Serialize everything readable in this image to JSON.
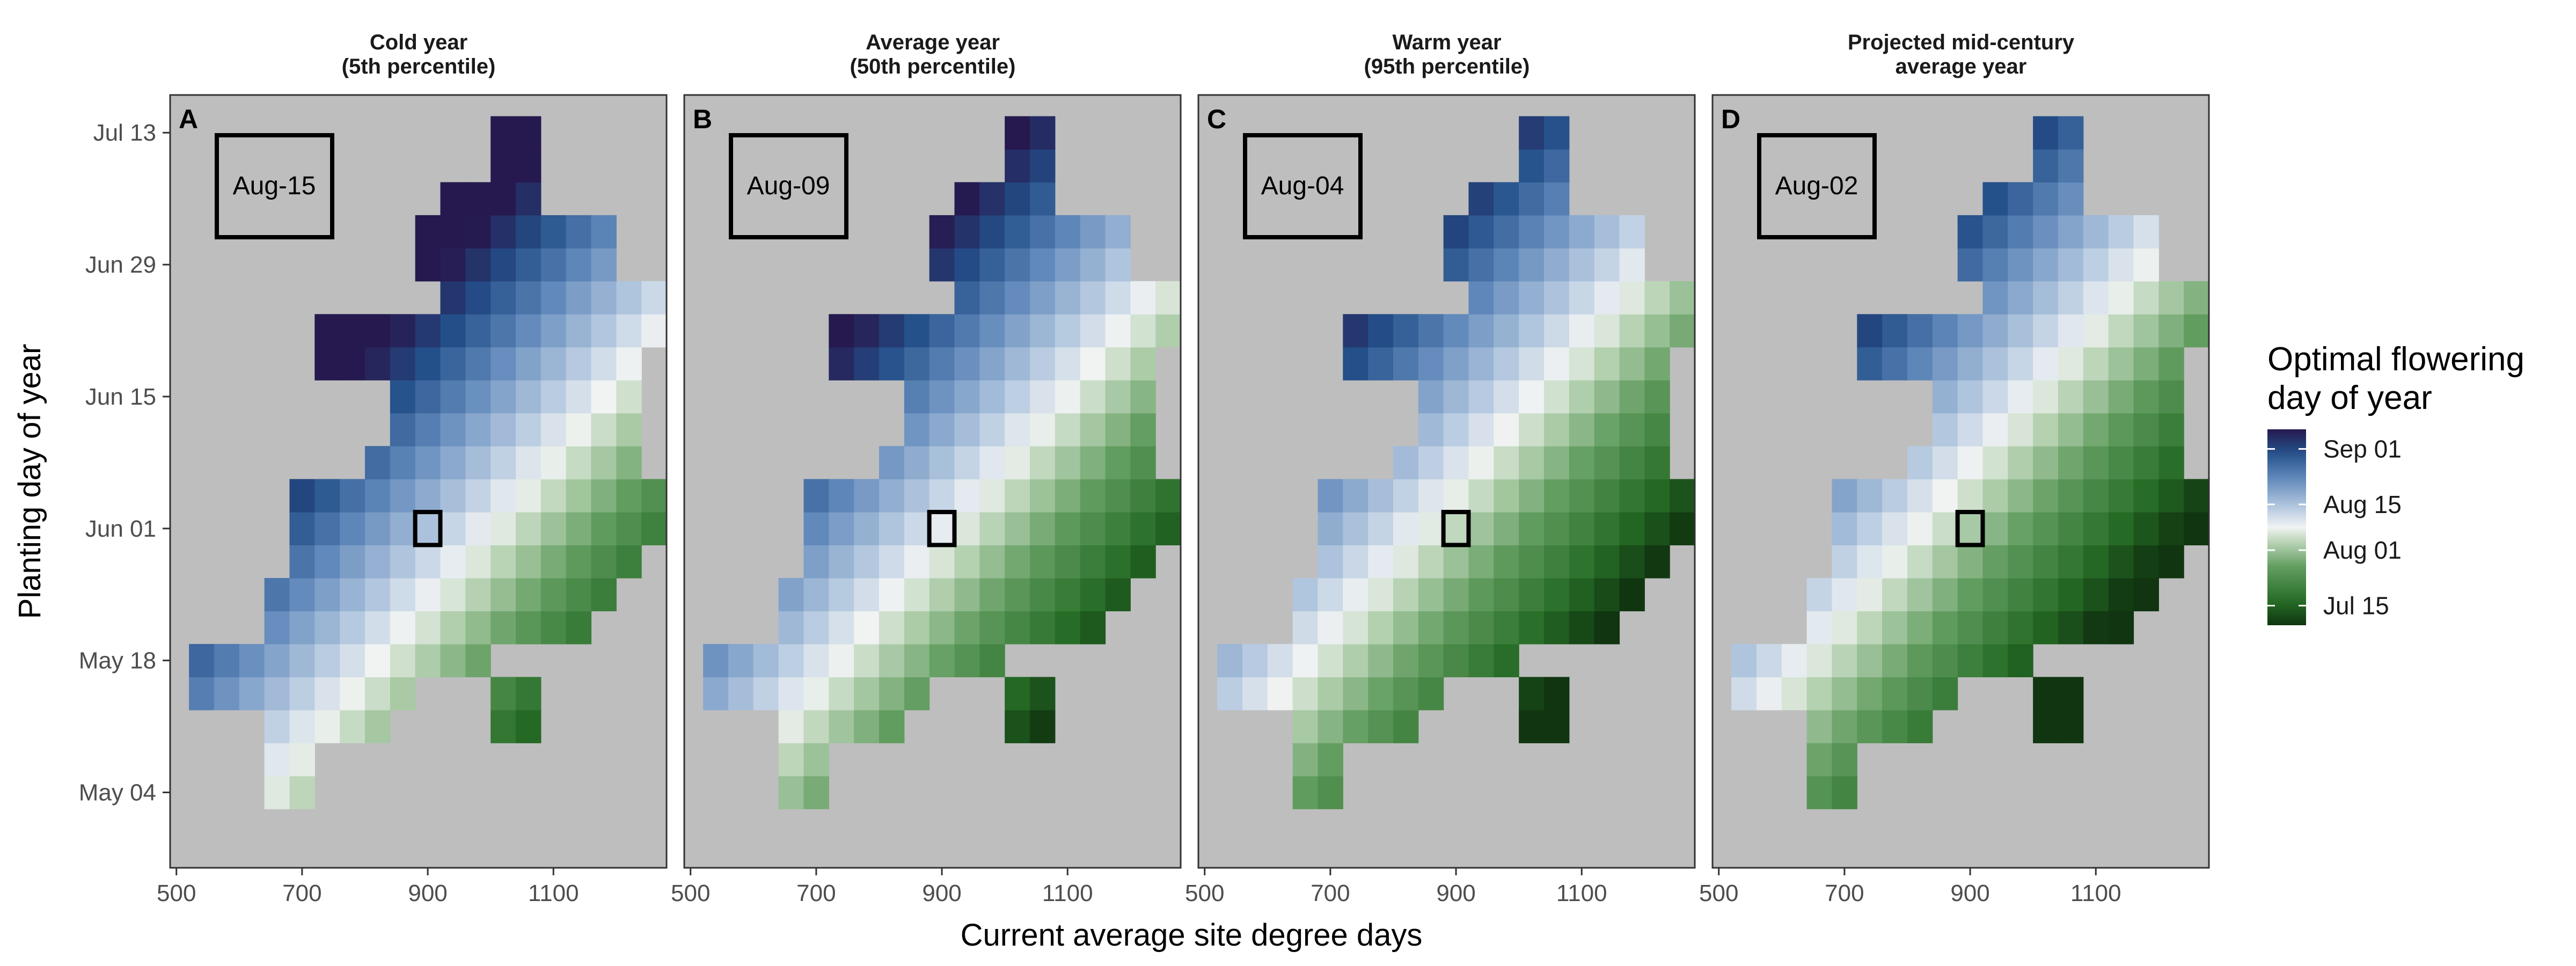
{
  "chart_data": {
    "type": "heatmap",
    "xlabel": "Current average site degree days",
    "ylabel": "Planting day of year",
    "x_ticks": [
      {
        "value": 500,
        "label": "500"
      },
      {
        "value": 700,
        "label": "700"
      },
      {
        "value": 900,
        "label": "900"
      },
      {
        "value": 1100,
        "label": "1100"
      }
    ],
    "y_ticks": [
      {
        "value": 124,
        "label": "May 04"
      },
      {
        "value": 138,
        "label": "May 18"
      },
      {
        "value": 152,
        "label": "Jun 01"
      },
      {
        "value": 166,
        "label": "Jun 15"
      },
      {
        "value": 180,
        "label": "Jun 29"
      },
      {
        "value": 194,
        "label": "Jul 13"
      }
    ],
    "xlim": [
      490,
      1280
    ],
    "ylim": [
      116,
      198
    ],
    "cell_width_gdd": 40,
    "cell_height_days": 3.5,
    "legend": {
      "title_line1": "Optimal flowering",
      "title_line2": "day of year",
      "placement": "right",
      "color_range": [
        190,
        250
      ],
      "breaks": [
        {
          "value": 244,
          "label": "Sep 01"
        },
        {
          "value": 227,
          "label": "Aug 15"
        },
        {
          "value": 213,
          "label": "Aug 01"
        },
        {
          "value": 196,
          "label": "Jul 15"
        }
      ],
      "colors": {
        "dark_purple": "#26194f",
        "dark_blue": "#24508a",
        "mid_blue": "#6189bb",
        "light_blue": "#b5c9e0",
        "white": "#f1f3f3",
        "light_green": "#b6d2b2",
        "mid_green": "#639e61",
        "dark_green": "#256b25",
        "darkest_green": "#103510"
      }
    },
    "highlight_cell": {
      "x": 900,
      "y": 152
    },
    "grid_rows": [
      {
        "y": 124,
        "x_from": 660,
        "x_to": 700
      },
      {
        "y": 127.5,
        "x_from": 660,
        "x_to": 700
      },
      {
        "y": 131,
        "x_from": 660,
        "x_to": 820
      },
      {
        "y": 131,
        "x_from": 1020,
        "x_to": 1060
      },
      {
        "y": 134.5,
        "x_from": 540,
        "x_to": 860
      },
      {
        "y": 134.5,
        "x_from": 1020,
        "x_to": 1060
      },
      {
        "y": 138,
        "x_from": 540,
        "x_to": 980
      },
      {
        "y": 141.5,
        "x_from": 660,
        "x_to": 1140
      },
      {
        "y": 145,
        "x_from": 660,
        "x_to": 1180
      },
      {
        "y": 148.5,
        "x_from": 700,
        "x_to": 1220
      },
      {
        "y": 152,
        "x_from": 700,
        "x_to": 1260
      },
      {
        "y": 155.5,
        "x_from": 700,
        "x_to": 1260
      },
      {
        "y": 159,
        "x_from": 820,
        "x_to": 1220
      },
      {
        "y": 162.5,
        "x_from": 860,
        "x_to": 1220
      },
      {
        "y": 166,
        "x_from": 860,
        "x_to": 1220
      },
      {
        "y": 169.5,
        "x_from": 740,
        "x_to": 1220
      },
      {
        "y": 173,
        "x_from": 740,
        "x_to": 1260
      },
      {
        "y": 176.5,
        "x_from": 940,
        "x_to": 1260
      },
      {
        "y": 180,
        "x_from": 900,
        "x_to": 1180
      },
      {
        "y": 183.5,
        "x_from": 900,
        "x_to": 1180
      },
      {
        "y": 187,
        "x_from": 940,
        "x_to": 1060
      },
      {
        "y": 190.5,
        "x_from": 1020,
        "x_to": 1060
      },
      {
        "y": 194,
        "x_from": 1020,
        "x_to": 1060
      }
    ],
    "panels": [
      {
        "letter": "A",
        "title_line1": "Cold year",
        "title_line2": "(5th percentile)",
        "median_label": "Aug-15",
        "base_doy": 227,
        "doy_per_100_gdd": -7,
        "doy_per_day_planted": 0.9
      },
      {
        "letter": "B",
        "title_line1": "Average year",
        "title_line2": "(50th percentile)",
        "median_label": "Aug-09",
        "base_doy": 221,
        "doy_per_100_gdd": -7,
        "doy_per_day_planted": 0.9
      },
      {
        "letter": "C",
        "title_line1": "Warm year",
        "title_line2": "(95th percentile)",
        "median_label": "Aug-04",
        "base_doy": 216,
        "doy_per_100_gdd": -7,
        "doy_per_day_planted": 0.9
      },
      {
        "letter": "D",
        "title_line1": "Projected mid-century",
        "title_line2": "average year",
        "median_label": "Aug-02",
        "base_doy": 214,
        "doy_per_100_gdd": -7,
        "doy_per_day_planted": 0.9
      }
    ]
  }
}
